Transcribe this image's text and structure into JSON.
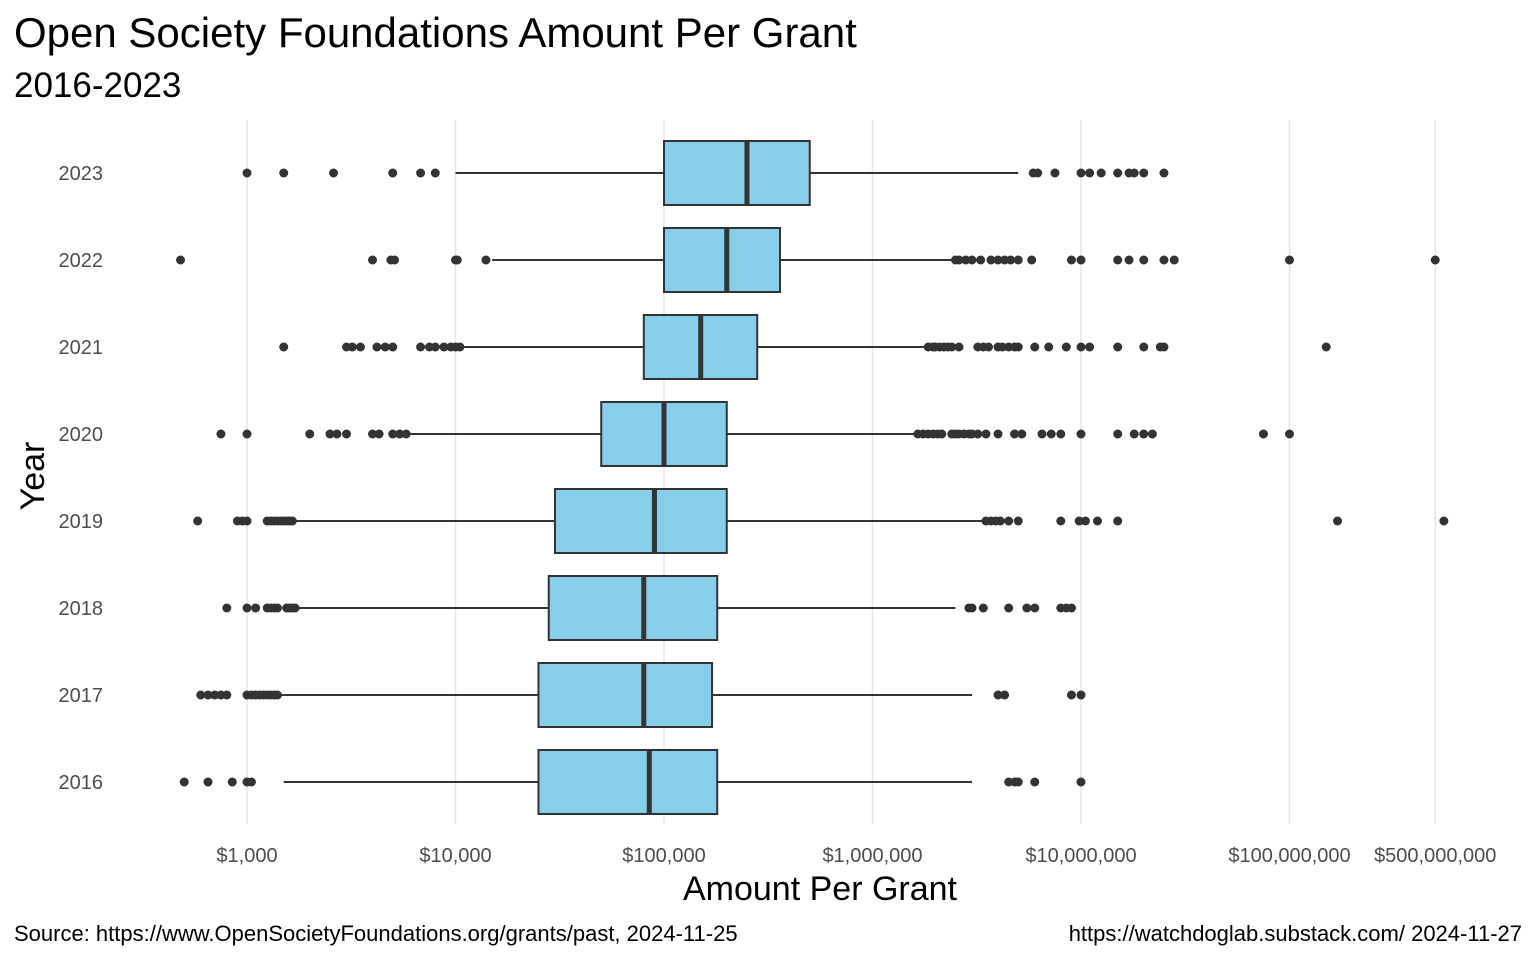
{
  "title": "Open Society Foundations Amount Per Grant",
  "subtitle": "2016-2023",
  "source": "Source:  https://www.OpenSocietyFoundations.org/grants/past, 2024-11-25",
  "credit": "https://watchdoglab.substack.com/  2024-11-27",
  "colors": {
    "box_fill": "#87ceeb",
    "box_stroke": "#333333",
    "grid": "#e6e6e6",
    "point": "#333333",
    "tick_text": "#4d4d4d"
  },
  "chart_data": {
    "type": "boxplot",
    "orientation": "horizontal",
    "xlabel": "Amount Per Grant",
    "ylabel": "Year",
    "x_scale": "log10",
    "xlim": [
      250,
      1000000000
    ],
    "grid": "vertical major lines",
    "x_ticks": [
      {
        "value": 1000,
        "label": "$1,000"
      },
      {
        "value": 10000,
        "label": "$10,000"
      },
      {
        "value": 100000,
        "label": "$100,000"
      },
      {
        "value": 1000000,
        "label": "$1,000,000"
      },
      {
        "value": 10000000,
        "label": "$10,000,000"
      },
      {
        "value": 100000000,
        "label": "$100,000,000"
      },
      {
        "value": 500000000,
        "label": "$500,000,000"
      }
    ],
    "categories": [
      "2023",
      "2022",
      "2021",
      "2020",
      "2019",
      "2018",
      "2017",
      "2016"
    ],
    "boxes": [
      {
        "year": "2023",
        "whisker_low": 10000,
        "q1": 100000,
        "median": 250000,
        "q3": 500000,
        "whisker_high": 5000000,
        "outliers": [
          1000,
          1500,
          2600,
          5000,
          6800,
          8000,
          5900000,
          6200000,
          7500000,
          10000000,
          11000000,
          12500000,
          15000000,
          17000000,
          18000000,
          20000000,
          25000000
        ]
      },
      {
        "year": "2022",
        "whisker_low": 15000,
        "q1": 100000,
        "median": 200000,
        "q3": 360000,
        "whisker_high": 2400000,
        "outliers": [
          480,
          4000,
          4900,
          5100,
          10000,
          10200,
          14000,
          2500000,
          2600000,
          2800000,
          3000000,
          3300000,
          3700000,
          4000000,
          4300000,
          4600000,
          5000000,
          5800000,
          9000000,
          10000000,
          15000000,
          17000000,
          20000000,
          25000000,
          28000000,
          100000000,
          500000000
        ]
      },
      {
        "year": "2021",
        "whisker_low": 11000,
        "q1": 80000,
        "median": 150000,
        "q3": 280000,
        "whisker_high": 1800000,
        "outliers": [
          1500,
          3000,
          3200,
          3500,
          4200,
          4600,
          5000,
          6800,
          7500,
          8000,
          8800,
          9500,
          10000,
          10500,
          1850000,
          1950000,
          2000000,
          2100000,
          2200000,
          2300000,
          2400000,
          2600000,
          3200000,
          3400000,
          3600000,
          4000000,
          4200000,
          4500000,
          4800000,
          5000000,
          6000000,
          7000000,
          8500000,
          10000000,
          11000000,
          15000000,
          20000000,
          24000000,
          25000000,
          150000000
        ]
      },
      {
        "year": "2020",
        "whisker_low": 6000,
        "q1": 50000,
        "median": 100000,
        "q3": 200000,
        "whisker_high": 1600000,
        "outliers": [
          750,
          1000,
          2000,
          2500,
          2700,
          3000,
          4000,
          4300,
          5000,
          5400,
          5800,
          1650000,
          1750000,
          1850000,
          1950000,
          2050000,
          2150000,
          2400000,
          2500000,
          2600000,
          2750000,
          2900000,
          3000000,
          3200000,
          3500000,
          4000000,
          4800000,
          5200000,
          6500000,
          7200000,
          8000000,
          10000000,
          15000000,
          18000000,
          20000000,
          22000000,
          75000000,
          100000000
        ]
      },
      {
        "year": "2019",
        "whisker_low": 1700,
        "q1": 30000,
        "median": 90000,
        "q3": 200000,
        "whisker_high": 3400000,
        "outliers": [
          580,
          900,
          950,
          1000,
          1250,
          1300,
          1350,
          1400,
          1450,
          1500,
          1550,
          1600,
          1650,
          3500000,
          3700000,
          3900000,
          4100000,
          4500000,
          5000000,
          8000000,
          9800000,
          10500000,
          12000000,
          15000000,
          170000000,
          550000000
        ]
      },
      {
        "year": "2018",
        "whisker_low": 1700,
        "q1": 28000,
        "median": 80000,
        "q3": 180000,
        "whisker_high": 2500000,
        "outliers": [
          800,
          1000,
          1100,
          1250,
          1300,
          1350,
          1400,
          1550,
          1600,
          1650,
          1700,
          2900000,
          3000000,
          3400000,
          4500000,
          5500000,
          6000000,
          8000000,
          8500000,
          9000000
        ]
      },
      {
        "year": "2017",
        "whisker_low": 1400,
        "q1": 25000,
        "median": 80000,
        "q3": 170000,
        "whisker_high": 3000000,
        "outliers": [
          600,
          650,
          700,
          750,
          800,
          1000,
          1050,
          1100,
          1150,
          1200,
          1250,
          1300,
          1350,
          1400,
          4000000,
          4300000,
          9000000,
          10000000
        ]
      },
      {
        "year": "2016",
        "whisker_low": 1500,
        "q1": 25000,
        "median": 85000,
        "q3": 180000,
        "whisker_high": 3000000,
        "outliers": [
          500,
          650,
          850,
          1000,
          1050,
          4500000,
          4800000,
          5000000,
          6000000,
          10000000
        ]
      }
    ]
  }
}
